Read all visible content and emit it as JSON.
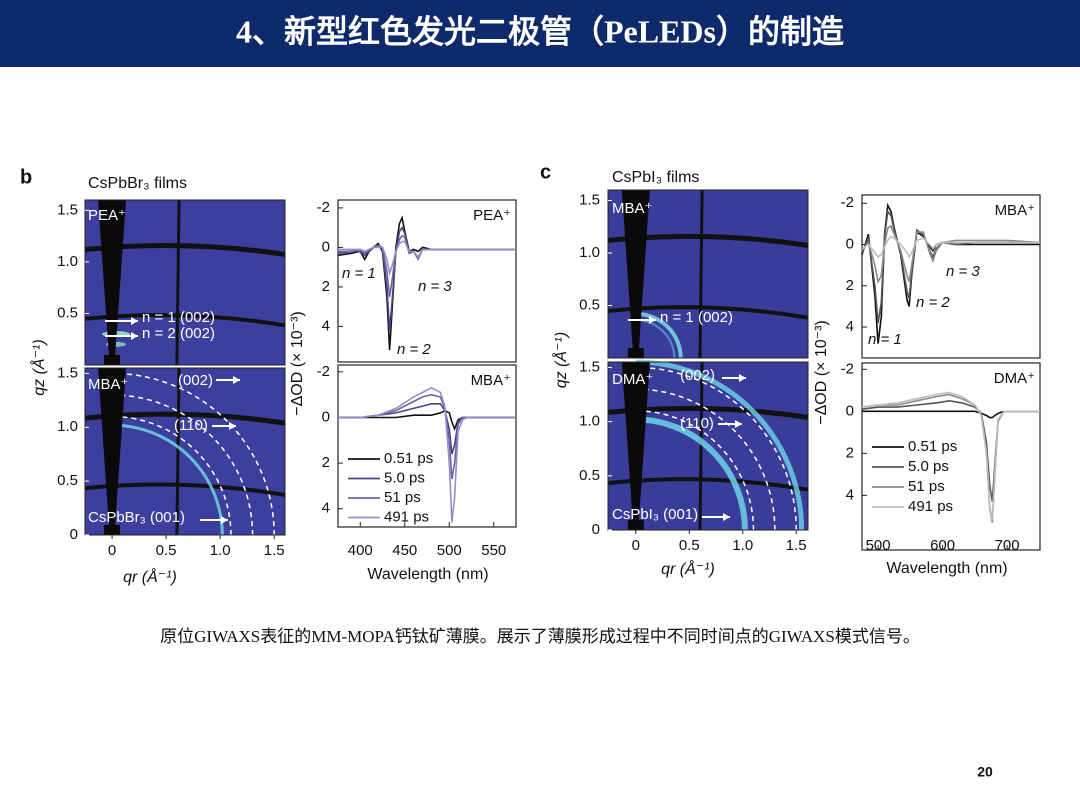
{
  "header": {
    "title": "4、新型红色发光二极管（PeLEDs）的制造"
  },
  "figure": {
    "series": [
      {
        "name": "0.51 ps"
      },
      {
        "name": "5.0 ps"
      },
      {
        "name": "51 ps"
      },
      {
        "name": "491 ps"
      }
    ],
    "panels": [
      {
        "letter": "b",
        "film_title": "CsPbBr₃ films",
        "colors": [
          "#111111",
          "#4f4383",
          "#6f62a6",
          "#998cc8"
        ],
        "giwaxs": {
          "qz_label": "qz (Å⁻¹)",
          "qr_label": "qr (Å⁻¹)",
          "qr_lim": [
            -0.25,
            1.6
          ],
          "qr_ticks": [
            0,
            0.5,
            {
              "value": 1,
              "label": "1.0"
            },
            1.5
          ],
          "images": [
            {
              "qz_lim": [
                0,
                1.6
              ],
              "qz_ticks": [
                0.5,
                {
                  "value": 1,
                  "label": "1.0"
                },
                1.5
              ],
              "labels": [
                "PEA⁺",
                "n = 1 (002)",
                "n = 2 (002)"
              ]
            },
            {
              "qz_lim": [
                0,
                1.55
              ],
              "qz_ticks": [
                0,
                0.5,
                {
                  "value": 1,
                  "label": "1.0"
                },
                1.5
              ],
              "labels": [
                "MBA⁺",
                "(002)",
                "(110)",
                "CsPbBr₃ (001)"
              ]
            }
          ]
        },
        "spectra": {
          "xlabel": "Wavelength (nm)",
          "ylabel": "−ΔOD (× 10⁻³)",
          "charts": [
            {
              "type": "line",
              "label": "PEA⁺",
              "annotations": [
                "n = 1",
                "n = 3",
                "n = 2"
              ],
              "y_inverted": true,
              "xlim": [
                375,
                575
              ],
              "ylim": [
                -2.4,
                5.8
              ],
              "yticks": [
                -2,
                0,
                2,
                4
              ],
              "x": [
                375,
                390,
                400,
                405,
                410,
                415,
                420,
                425,
                430,
                433,
                436,
                440,
                444,
                447,
                450,
                455,
                460,
                465,
                470,
                480,
                500,
                530,
                575
              ],
              "values": [
                [
                  0.4,
                  0.3,
                  0.2,
                  0.6,
                  0.2,
                  0,
                  -0.2,
                  0.2,
                  2.5,
                  5.2,
                  3.0,
                  0.0,
                  -1.2,
                  -1.5,
                  -0.8,
                  0.2,
                  0.1,
                  0.2,
                  0.0,
                  0.1,
                  0.1,
                  0.1,
                  0.1
                ],
                [
                  0.3,
                  0.2,
                  0.2,
                  0.4,
                  0.2,
                  0,
                  -0.1,
                  0.1,
                  2.0,
                  4.2,
                  2.6,
                  0.2,
                  -0.8,
                  -1.0,
                  -0.7,
                  0.3,
                  0.2,
                  0.5,
                  0.1,
                  0.1,
                  0.1,
                  0.1,
                  0.1
                ],
                [
                  0.2,
                  0.2,
                  0.1,
                  0.3,
                  0.1,
                  0,
                  -0.1,
                  0,
                  1.2,
                  2.5,
                  1.6,
                  0.2,
                  -0.4,
                  -0.6,
                  -0.5,
                  0.3,
                  0.2,
                  0.6,
                  0.1,
                  0.1,
                  0.1,
                  0.1,
                  0.1
                ],
                [
                  0.1,
                  0.1,
                  0.1,
                  0.2,
                  0.1,
                  0,
                  0,
                  0,
                  0.6,
                  1.3,
                  0.9,
                  0.2,
                  -0.2,
                  -0.3,
                  -0.3,
                  0.2,
                  0.2,
                  0.5,
                  0.1,
                  0.1,
                  0.1,
                  0.1,
                  0.1
                ]
              ]
            },
            {
              "type": "line",
              "label": "MBA⁺",
              "legend": true,
              "y_inverted": true,
              "xlim": [
                375,
                575
              ],
              "ylim": [
                -2.3,
                4.8
              ],
              "yticks": [
                -2,
                0,
                2,
                4
              ],
              "xticks": [
                400,
                450,
                500,
                550
              ],
              "x": [
                375,
                400,
                420,
                440,
                460,
                470,
                480,
                490,
                495,
                500,
                503,
                506,
                510,
                515,
                520,
                530,
                550,
                575
              ],
              "values": [
                [
                  0,
                  0,
                  0,
                  0,
                  -0.1,
                  -0.1,
                  -0.1,
                  -0.2,
                  -0.3,
                  -0.2,
                  0.2,
                  0.5,
                  0.1,
                  0,
                  0,
                  0,
                  0,
                  0
                ],
                [
                  0,
                  0,
                  -0.1,
                  -0.2,
                  -0.4,
                  -0.5,
                  -0.6,
                  -0.6,
                  -0.3,
                  0.5,
                  1.6,
                  1.2,
                  0.2,
                  0,
                  0,
                  0,
                  0,
                  0
                ],
                [
                  0,
                  0,
                  -0.1,
                  -0.3,
                  -0.7,
                  -0.9,
                  -1.0,
                  -0.9,
                  -0.4,
                  1.0,
                  2.7,
                  2.0,
                  0.3,
                  0,
                  0,
                  0,
                  0,
                  0
                ],
                [
                  0,
                  0,
                  -0.1,
                  -0.4,
                  -0.9,
                  -1.1,
                  -1.3,
                  -1.1,
                  -0.5,
                  2.0,
                  4.6,
                  3.5,
                  0.6,
                  0.1,
                  0,
                  0,
                  0,
                  0
                ]
              ]
            }
          ]
        }
      },
      {
        "letter": "c",
        "film_title": "CsPbI₃ films",
        "colors": [
          "#111111",
          "#555555",
          "#8a8a8a",
          "#bdbdbd"
        ],
        "giwaxs": {
          "qz_label": "qz (Å⁻¹)",
          "qr_label": "qr (Å⁻¹)",
          "qr_lim": [
            -0.26,
            1.61
          ],
          "qr_ticks": [
            0,
            0.5,
            {
              "value": 1,
              "label": "1.0"
            },
            1.5
          ],
          "images": [
            {
              "qz_lim": [
                0,
                1.6
              ],
              "qz_ticks": [
                0.5,
                {
                  "value": 1,
                  "label": "1.0"
                },
                1.5
              ],
              "labels": [
                "MBA⁺",
                "n = 1 (002)"
              ]
            },
            {
              "qz_lim": [
                0,
                1.55
              ],
              "qz_ticks": [
                0,
                0.5,
                {
                  "value": 1,
                  "label": "1.0"
                },
                1.5
              ],
              "labels": [
                "DMA⁺",
                "(002)",
                "(110)",
                "CsPbI₃ (001)"
              ]
            }
          ]
        },
        "spectra": {
          "xlabel": "Wavelength (nm)",
          "ylabel": "−ΔOD (× 10⁻³)",
          "charts": [
            {
              "type": "line",
              "label": "MBA⁺",
              "annotations": [
                "n = 3",
                "n = 2",
                "n = 1"
              ],
              "y_inverted": true,
              "xlim": [
                475,
                751
              ],
              "ylim": [
                -2.4,
                5.5
              ],
              "yticks": [
                -2,
                0,
                2,
                4
              ],
              "x": [
                475,
                485,
                495,
                500,
                505,
                510,
                515,
                520,
                525,
                535,
                545,
                548,
                552,
                560,
                570,
                580,
                585,
                590,
                600,
                620,
                650,
                700,
                751
              ],
              "values": [
                [
                  0.5,
                  -0.5,
                  2.5,
                  4.8,
                  3.5,
                  -0.5,
                  -1.9,
                  -1.6,
                  -0.8,
                  0.5,
                  2.7,
                  3.0,
                  1.5,
                  -0.6,
                  -0.4,
                  0.1,
                  0.3,
                  0.0,
                  -0.1,
                  0,
                  0,
                  0,
                  0
                ],
                [
                  0.4,
                  -0.3,
                  2.0,
                  3.8,
                  2.8,
                  -0.4,
                  -1.6,
                  -1.4,
                  -0.7,
                  0.4,
                  2.3,
                  2.6,
                  1.4,
                  -0.7,
                  -0.5,
                  0.3,
                  0.6,
                  0.2,
                  -0.1,
                  0,
                  -0.1,
                  -0.1,
                  -0.1
                ],
                [
                  0.3,
                  -0.1,
                  1.0,
                  1.8,
                  1.5,
                  0,
                  -0.8,
                  -0.9,
                  -0.5,
                  0.3,
                  1.5,
                  1.8,
                  1.0,
                  -0.6,
                  -0.6,
                  0.4,
                  0.8,
                  0.3,
                  -0.1,
                  -0.2,
                  -0.2,
                  -0.2,
                  -0.1
                ],
                [
                  0.2,
                  0,
                  0.4,
                  0.6,
                  0.5,
                  0.1,
                  -0.2,
                  -0.4,
                  -0.3,
                  0,
                  0.4,
                  0.6,
                  0.4,
                  -0.2,
                  -0.3,
                  0,
                  0.2,
                  0,
                  -0.1,
                  -0.1,
                  -0.1,
                  -0.1,
                  -0.1
                ]
              ]
            },
            {
              "type": "line",
              "label": "DMA⁺",
              "legend": true,
              "y_inverted": true,
              "xlim": [
                475,
                751
              ],
              "ylim": [
                -2.3,
                6.6
              ],
              "yticks": [
                -2,
                0,
                2,
                4
              ],
              "xticks": [
                500,
                600,
                700
              ],
              "x": [
                475,
                500,
                530,
                560,
                590,
                610,
                630,
                650,
                660,
                668,
                673,
                677,
                681,
                686,
                695,
                710,
                730,
                751
              ],
              "values": [
                [
                  0,
                  0,
                  0,
                  0,
                  0,
                  0,
                  0,
                  0,
                  0.1,
                  0.2,
                  0.3,
                  0.3,
                  0.2,
                  0.1,
                  0,
                  0,
                  0,
                  0
                ],
                [
                  -0.1,
                  -0.2,
                  -0.2,
                  -0.3,
                  -0.4,
                  -0.5,
                  -0.4,
                  -0.2,
                  0.1,
                  1.5,
                  3.5,
                  4.3,
                  2.5,
                  0.4,
                  0,
                  0,
                  0,
                  0
                ],
                [
                  -0.2,
                  -0.3,
                  -0.3,
                  -0.5,
                  -0.7,
                  -0.8,
                  -0.6,
                  -0.3,
                  0.2,
                  2.0,
                  4.6,
                  5.3,
                  3.0,
                  0.5,
                  0,
                  0,
                  0,
                  0
                ],
                [
                  -0.2,
                  -0.3,
                  -0.4,
                  -0.6,
                  -0.8,
                  -0.9,
                  -0.7,
                  -0.3,
                  0.2,
                  2.0,
                  4.5,
                  5.2,
                  2.9,
                  0.4,
                  0,
                  0,
                  0,
                  0
                ]
              ]
            }
          ]
        }
      }
    ]
  },
  "caption": "原位GIWAXS表征的MM-MOPA钙钛矿薄膜。展示了薄膜形成过程中不同时间点的GIWAXS模式信号。",
  "page_number": "20"
}
